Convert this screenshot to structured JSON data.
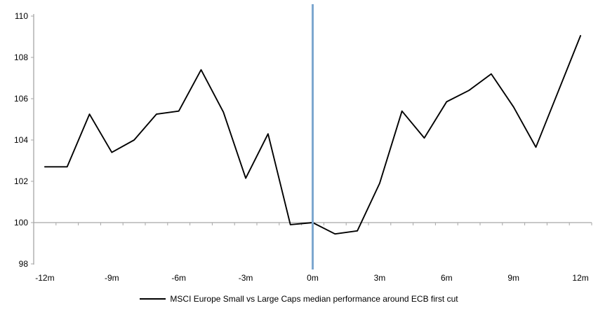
{
  "chart_data": {
    "type": "line",
    "title": "",
    "legend": "MSCI Europe Small vs Large Caps median performance around ECB first cut",
    "x": [
      -12,
      -11,
      -10,
      -9,
      -8,
      -7,
      -6,
      -5,
      -4,
      -3,
      -2,
      -1,
      0,
      1,
      2,
      3,
      4,
      5,
      6,
      7,
      8,
      9,
      10,
      11,
      12
    ],
    "xtick_labels": [
      "-12m",
      "-9m",
      "-6m",
      "-3m",
      "0m",
      "3m",
      "6m",
      "9m",
      "12m"
    ],
    "xtick_every": 3,
    "series": [
      {
        "name": "MSCI Europe Small vs Large Caps median performance around ECB first cut",
        "color": "#000000",
        "values": [
          102.7,
          102.7,
          105.25,
          103.4,
          104.0,
          105.25,
          105.4,
          107.4,
          105.35,
          102.15,
          104.3,
          99.9,
          100.0,
          99.45,
          99.6,
          101.9,
          105.4,
          104.1,
          105.85,
          106.4,
          107.2,
          105.6,
          103.65,
          106.35,
          109.05
        ]
      }
    ],
    "ylim": [
      98,
      110
    ],
    "ytick_step": 2,
    "ytick_labels": [
      "98",
      "100",
      "102",
      "104",
      "106",
      "108",
      "110"
    ],
    "axis_cross_y": 100,
    "event_line": {
      "x": 0,
      "color": "#7DA7CF"
    },
    "axis_color": "#A6A6A6",
    "text_color": "#000000",
    "grid": false,
    "legend_position": "bottom"
  }
}
